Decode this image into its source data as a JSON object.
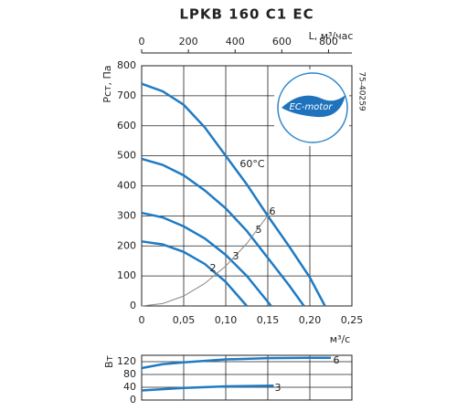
{
  "chart_data": [
    {
      "type": "line",
      "title": "LPKB 160 C1 EC",
      "code": "75-40259",
      "badge": "EC-motor",
      "ylabel": "Pст, Па",
      "xlabel": "м³/с",
      "x2label": "L, м³/час",
      "xlim": [
        0,
        0.25
      ],
      "xticks": [
        0,
        {
          "value": 0.05,
          "label": "0,05"
        },
        {
          "value": 0.1,
          "label": "0,10"
        },
        {
          "value": 0.15,
          "label": "0,15"
        },
        {
          "value": 0.2,
          "label": "0,20"
        },
        {
          "value": 0.25,
          "label": "0,25"
        }
      ],
      "x2lim": [
        0,
        900
      ],
      "x2ticks": [
        0,
        200,
        400,
        600,
        800
      ],
      "ylim": [
        0,
        800
      ],
      "yticks": [
        0,
        100,
        200,
        300,
        400,
        500,
        600,
        700,
        800
      ],
      "grid": true,
      "annotation": "60°C",
      "series": [
        {
          "name": "6",
          "color": "#1f7bc4",
          "x": [
            0,
            0.025,
            0.05,
            0.075,
            0.1,
            0.125,
            0.15,
            0.175,
            0.2,
            0.218
          ],
          "values": [
            740,
            715,
            670,
            595,
            500,
            405,
            300,
            200,
            95,
            0
          ]
        },
        {
          "name": "5",
          "color": "#1f7bc4",
          "x": [
            0,
            0.025,
            0.05,
            0.075,
            0.1,
            0.125,
            0.15,
            0.175,
            0.193
          ],
          "values": [
            490,
            470,
            435,
            385,
            325,
            250,
            160,
            70,
            0
          ]
        },
        {
          "name": "3",
          "color": "#1f7bc4",
          "x": [
            0,
            0.025,
            0.05,
            0.075,
            0.1,
            0.125,
            0.154
          ],
          "values": [
            310,
            295,
            265,
            225,
            170,
            100,
            0
          ]
        },
        {
          "name": "2",
          "color": "#1f7bc4",
          "x": [
            0,
            0.025,
            0.05,
            0.075,
            0.1,
            0.125
          ],
          "values": [
            215,
            205,
            180,
            140,
            80,
            0
          ]
        },
        {
          "color": "#888888",
          "x": [
            0,
            0.025,
            0.05,
            0.075,
            0.1,
            0.125,
            0.155
          ],
          "values": [
            0,
            8,
            33,
            75,
            133,
            208,
            320
          ]
        }
      ]
    },
    {
      "type": "line",
      "ylabel": "Вт",
      "xlim": [
        0,
        0.25
      ],
      "ylim": [
        0,
        140
      ],
      "yticks": [
        0,
        40,
        80,
        120
      ],
      "grid": true,
      "series": [
        {
          "name": "6",
          "color": "#1f7bc4",
          "x": [
            0,
            0.025,
            0.05,
            0.1,
            0.15,
            0.2,
            0.225
          ],
          "values": [
            100,
            112,
            118,
            127,
            131,
            132,
            132
          ]
        },
        {
          "name": "3",
          "color": "#1f7bc4",
          "x": [
            0,
            0.05,
            0.1,
            0.157
          ],
          "values": [
            30,
            38,
            43,
            45
          ]
        }
      ]
    }
  ]
}
